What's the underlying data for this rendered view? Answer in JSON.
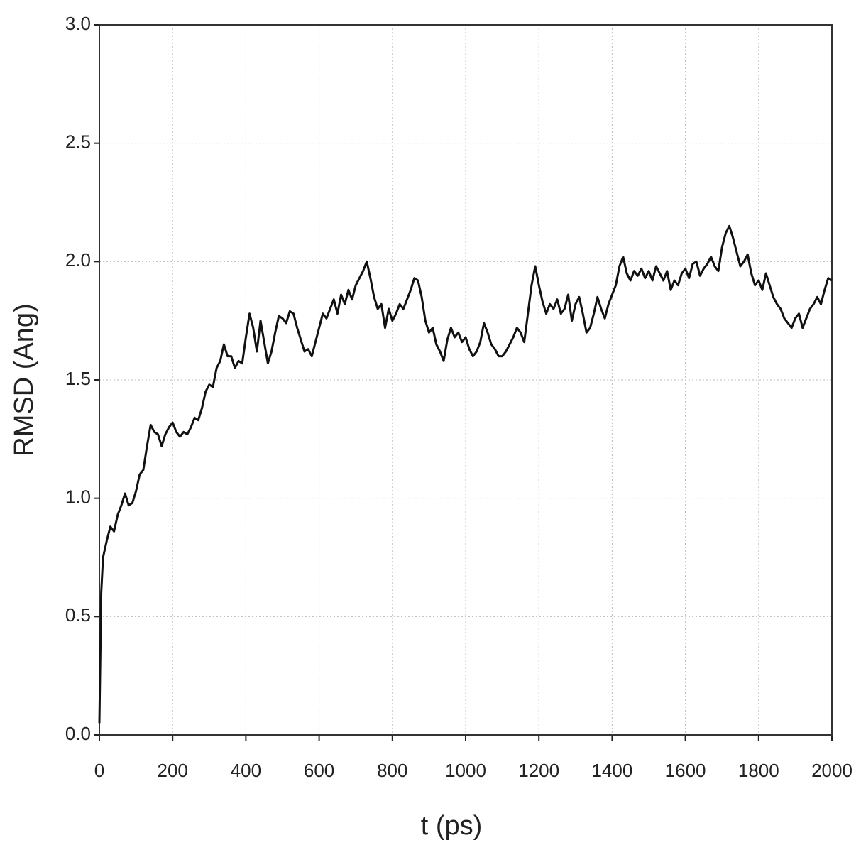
{
  "chart_data": {
    "type": "line",
    "xlabel": "t (ps)",
    "ylabel": "RMSD (Ang)",
    "x": [
      0,
      5,
      10,
      20,
      30,
      40,
      50,
      60,
      70,
      80,
      90,
      100,
      110,
      120,
      130,
      140,
      150,
      160,
      170,
      180,
      190,
      200,
      210,
      220,
      230,
      240,
      250,
      260,
      270,
      280,
      290,
      300,
      310,
      320,
      330,
      340,
      350,
      360,
      370,
      380,
      390,
      400,
      410,
      420,
      430,
      440,
      450,
      460,
      470,
      480,
      490,
      500,
      510,
      520,
      530,
      540,
      550,
      560,
      570,
      580,
      590,
      600,
      610,
      620,
      630,
      640,
      650,
      660,
      670,
      680,
      690,
      700,
      710,
      720,
      730,
      740,
      750,
      760,
      770,
      780,
      790,
      800,
      810,
      820,
      830,
      840,
      850,
      860,
      870,
      880,
      890,
      900,
      910,
      920,
      930,
      940,
      950,
      960,
      970,
      980,
      990,
      1000,
      1010,
      1020,
      1030,
      1040,
      1050,
      1060,
      1070,
      1080,
      1090,
      1100,
      1110,
      1120,
      1130,
      1140,
      1150,
      1160,
      1170,
      1180,
      1190,
      1200,
      1210,
      1220,
      1230,
      1240,
      1250,
      1260,
      1270,
      1280,
      1290,
      1300,
      1310,
      1320,
      1330,
      1340,
      1350,
      1360,
      1370,
      1380,
      1390,
      1400,
      1410,
      1420,
      1430,
      1440,
      1450,
      1460,
      1470,
      1480,
      1490,
      1500,
      1510,
      1520,
      1530,
      1540,
      1550,
      1560,
      1570,
      1580,
      1590,
      1600,
      1610,
      1620,
      1630,
      1640,
      1650,
      1660,
      1670,
      1680,
      1690,
      1700,
      1710,
      1720,
      1730,
      1740,
      1750,
      1760,
      1770,
      1780,
      1790,
      1800,
      1810,
      1820,
      1830,
      1840,
      1850,
      1860,
      1870,
      1880,
      1890,
      1900,
      1910,
      1920,
      1930,
      1940,
      1950,
      1960,
      1970,
      1980,
      1990,
      2000
    ],
    "series": [
      {
        "color": "#111111",
        "values": [
          0.05,
          0.6,
          0.75,
          0.82,
          0.88,
          0.86,
          0.93,
          0.97,
          1.02,
          0.97,
          0.98,
          1.03,
          1.1,
          1.12,
          1.22,
          1.31,
          1.28,
          1.27,
          1.22,
          1.27,
          1.3,
          1.32,
          1.28,
          1.26,
          1.28,
          1.27,
          1.3,
          1.34,
          1.33,
          1.38,
          1.45,
          1.48,
          1.47,
          1.55,
          1.58,
          1.65,
          1.6,
          1.6,
          1.55,
          1.58,
          1.57,
          1.68,
          1.78,
          1.72,
          1.62,
          1.75,
          1.66,
          1.57,
          1.62,
          1.7,
          1.77,
          1.76,
          1.74,
          1.79,
          1.78,
          1.72,
          1.67,
          1.62,
          1.63,
          1.6,
          1.66,
          1.72,
          1.78,
          1.76,
          1.8,
          1.84,
          1.78,
          1.86,
          1.82,
          1.88,
          1.84,
          1.9,
          1.93,
          1.96,
          2.0,
          1.93,
          1.85,
          1.8,
          1.82,
          1.72,
          1.8,
          1.75,
          1.78,
          1.82,
          1.8,
          1.84,
          1.88,
          1.93,
          1.92,
          1.85,
          1.75,
          1.7,
          1.72,
          1.65,
          1.62,
          1.58,
          1.67,
          1.72,
          1.68,
          1.7,
          1.66,
          1.68,
          1.63,
          1.6,
          1.62,
          1.66,
          1.74,
          1.7,
          1.65,
          1.63,
          1.6,
          1.6,
          1.62,
          1.65,
          1.68,
          1.72,
          1.7,
          1.66,
          1.78,
          1.9,
          1.98,
          1.9,
          1.83,
          1.78,
          1.82,
          1.8,
          1.84,
          1.78,
          1.8,
          1.86,
          1.75,
          1.82,
          1.85,
          1.78,
          1.7,
          1.72,
          1.78,
          1.85,
          1.8,
          1.76,
          1.82,
          1.86,
          1.9,
          1.98,
          2.02,
          1.95,
          1.92,
          1.96,
          1.94,
          1.97,
          1.93,
          1.96,
          1.92,
          1.98,
          1.95,
          1.92,
          1.96,
          1.88,
          1.92,
          1.9,
          1.95,
          1.97,
          1.93,
          1.99,
          2.0,
          1.94,
          1.97,
          1.99,
          2.02,
          1.98,
          1.96,
          2.06,
          2.12,
          2.15,
          2.1,
          2.04,
          1.98,
          2.0,
          2.03,
          1.95,
          1.9,
          1.92,
          1.88,
          1.95,
          1.9,
          1.85,
          1.82,
          1.8,
          1.76,
          1.74,
          1.72,
          1.76,
          1.78,
          1.72,
          1.76,
          1.8,
          1.82,
          1.85,
          1.82,
          1.88,
          1.93,
          1.92
        ]
      }
    ],
    "xlim": [
      0,
      2000
    ],
    "xticks": [
      0,
      200,
      400,
      600,
      800,
      1000,
      1200,
      1400,
      1600,
      1800,
      2000
    ],
    "ylim": [
      0,
      3
    ],
    "yticks": [
      {
        "value": 0,
        "label": "0.0"
      },
      0.5,
      {
        "value": 1,
        "label": "1.0"
      },
      1.5,
      {
        "value": 2,
        "label": "2.0"
      },
      2.5,
      {
        "value": 3,
        "label": "3.0"
      }
    ],
    "grid": true
  }
}
